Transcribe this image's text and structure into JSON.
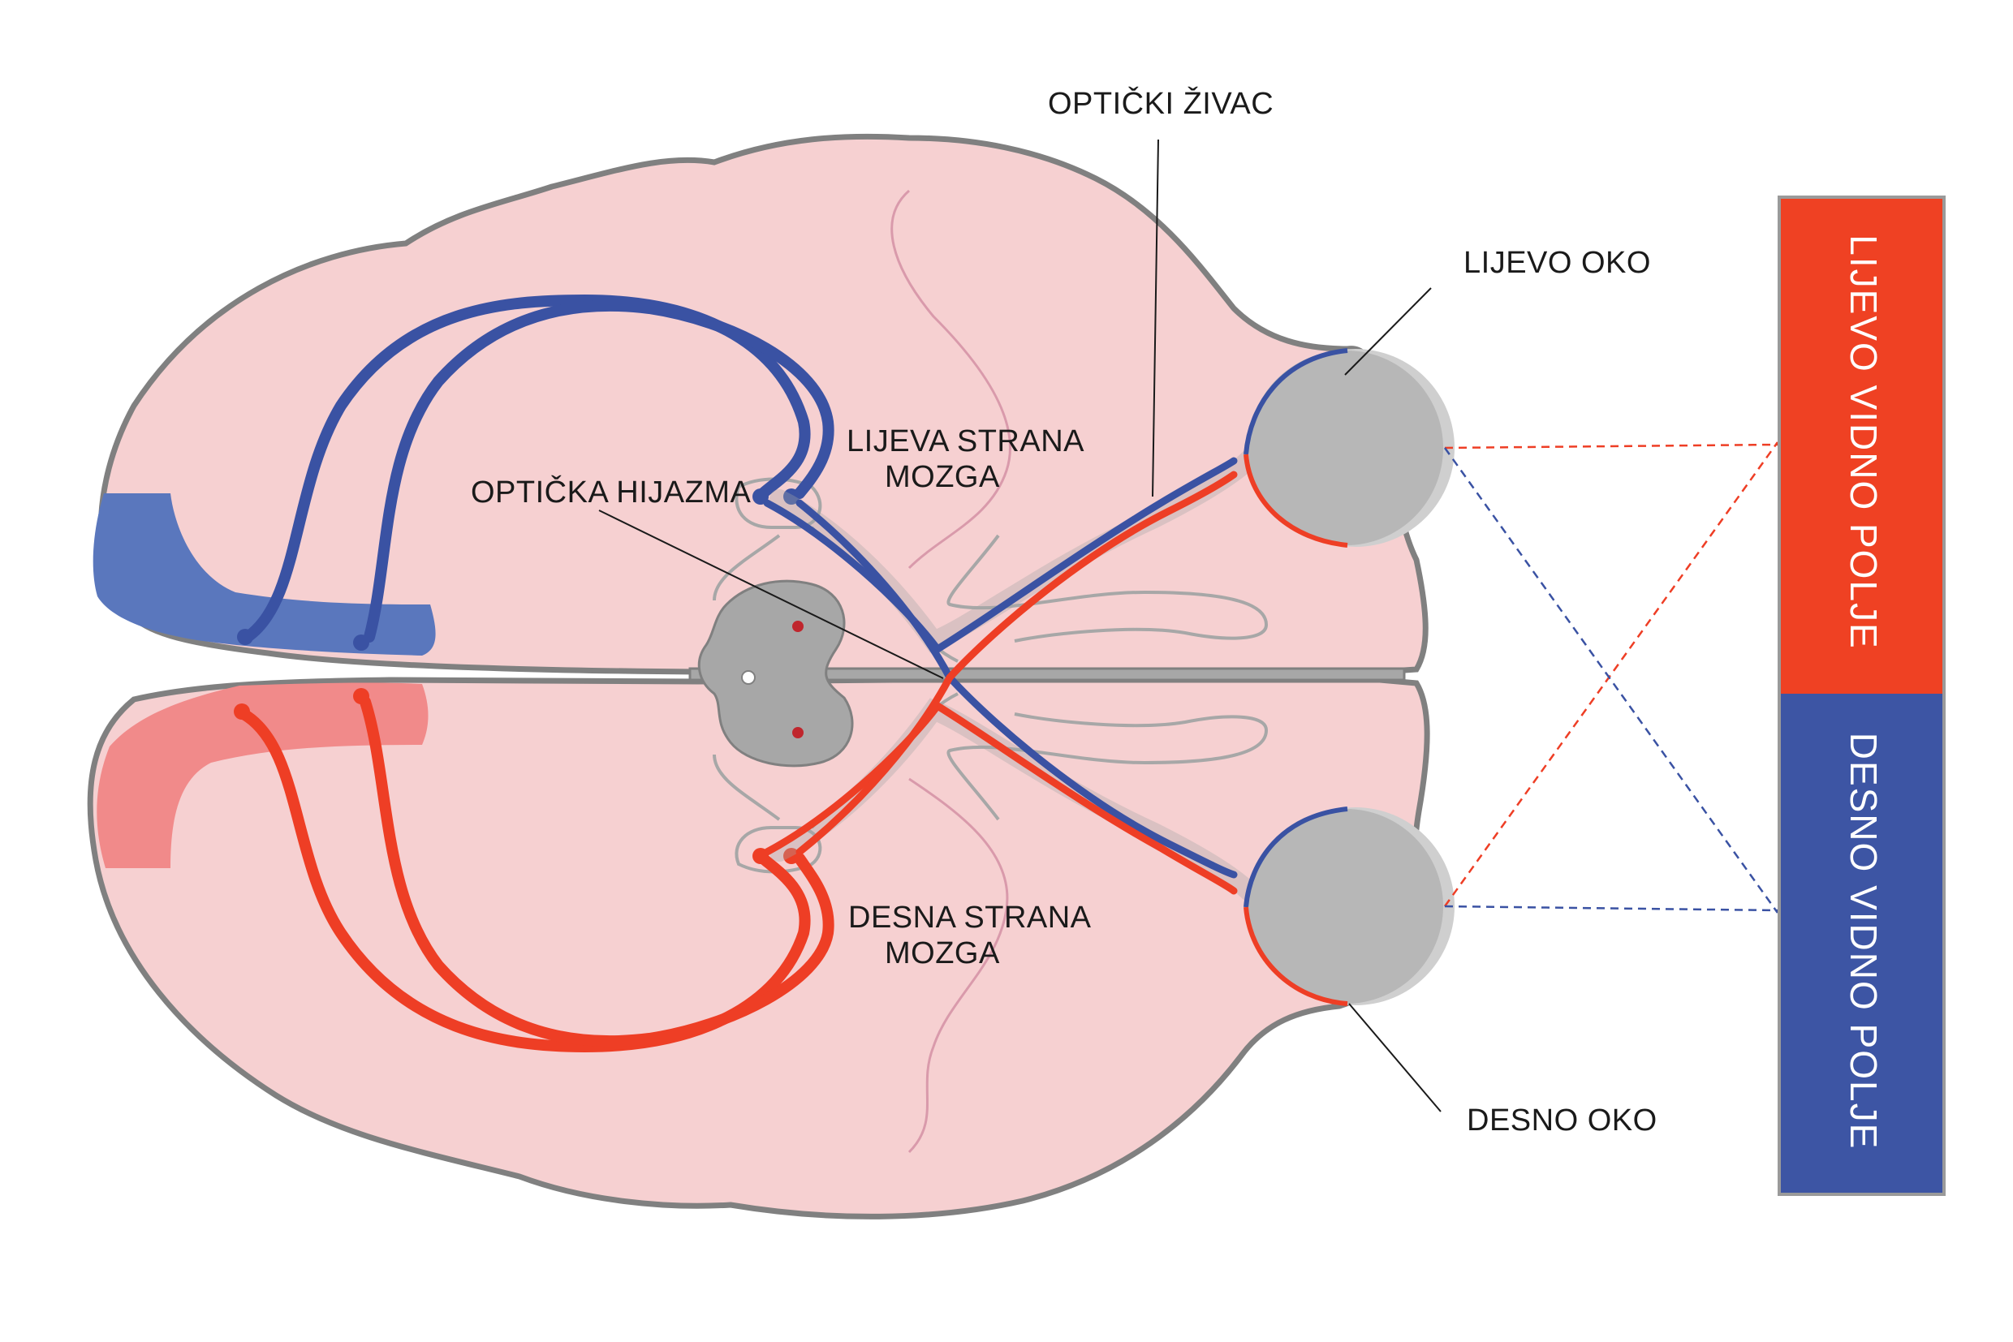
{
  "labels": {
    "opticki_zivac": "OPTIČKI ŽIVAC",
    "lijevo_oko": "LIJEVO OKO",
    "desno_oko": "DESNO OKO",
    "opticka_hijazma": "OPTIČKA HIJAZMA",
    "lijeva_strana_1": "LIJEVA STRANA",
    "lijeva_strana_2": "MOZGA",
    "desna_strana_1": "DESNA STRANA",
    "desna_strana_2": "MOZGA"
  },
  "panels": {
    "lijevo_vidno_polje": "LIJEVO VIDNO POLJE",
    "desno_vidno_polje": "DESNO VIDNO POLJE"
  },
  "colors": {
    "brain_fill": "#f6d0d1",
    "brain_outline": "#808080",
    "left_pathway": "#3a52a3",
    "right_pathway": "#ee3e25",
    "eye_fill": "#b7b7b7",
    "panel_top": "#ef4123",
    "panel_bottom": "#3d55a4"
  }
}
